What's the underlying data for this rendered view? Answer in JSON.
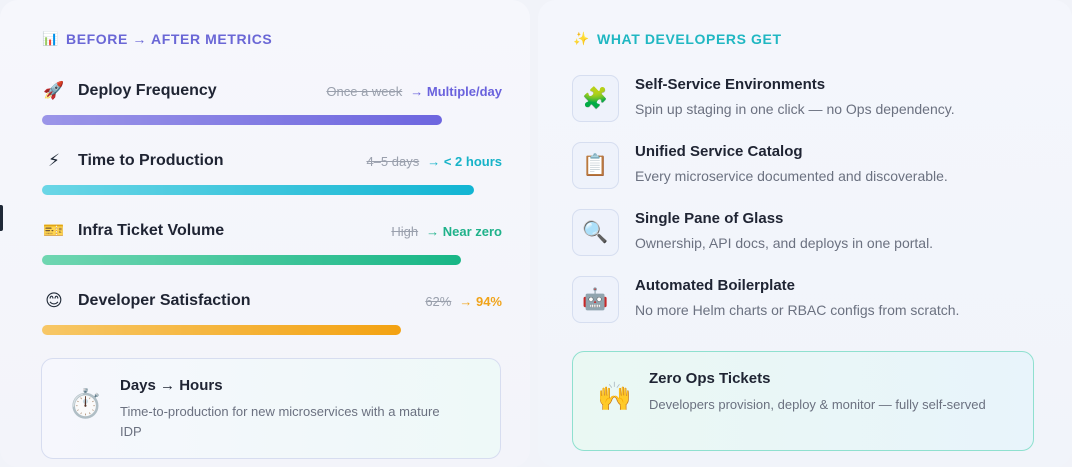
{
  "left": {
    "icon": "bar-chart-icon",
    "icon_glyph": "📊",
    "title": "BEFORE → AFTER METRICS",
    "metrics": [
      {
        "icon": "rocket-icon",
        "icon_glyph": "🚀",
        "label": "Deploy Frequency",
        "before": "Once a week",
        "after": "→ Multiple/day",
        "after_color": "#6a62dd",
        "bar_fraction": 0.87,
        "bar_gradient": [
          "#9b95e8",
          "#6d66df"
        ]
      },
      {
        "icon": "lightning-icon",
        "icon_glyph": "⚡",
        "label": "Time to Production",
        "before": "4–5 days",
        "after": "→ < 2 hours",
        "after_color": "#17b3c8",
        "bar_fraction": 0.94,
        "bar_gradient": [
          "#6ad6e6",
          "#12b5d3"
        ]
      },
      {
        "icon": "ticket-icon",
        "icon_glyph": "🎫",
        "label": "Infra Ticket Volume",
        "before": "High",
        "after": "→ Near zero",
        "after_color": "#1fb28a",
        "bar_fraction": 0.91,
        "bar_gradient": [
          "#6fd6b1",
          "#18b686"
        ]
      },
      {
        "icon": "smile-icon",
        "icon_glyph": "😊",
        "label": "Developer Satisfaction",
        "before": "62%",
        "after": "→ 94%",
        "after_color": "#f0a31a",
        "bar_fraction": 0.78,
        "bar_gradient": [
          "#f7c766",
          "#f3a212"
        ]
      }
    ],
    "callout": {
      "icon": "stopwatch-icon",
      "icon_glyph": "⏱️",
      "title": "Days → Hours",
      "desc": "Time-to-production for new microservices with a mature IDP"
    }
  },
  "right": {
    "icon": "sparkles-icon",
    "icon_glyph": "✨",
    "title": "WHAT DEVELOPERS GET",
    "features": [
      {
        "icon": "puzzle-icon",
        "icon_glyph": "🧩",
        "title": "Self-Service Environments",
        "desc": "Spin up staging in one click — no Ops dependency."
      },
      {
        "icon": "clipboard-icon",
        "icon_glyph": "📋",
        "title": "Unified Service Catalog",
        "desc": "Every microservice documented and discoverable."
      },
      {
        "icon": "magnifier-icon",
        "icon_glyph": "🔍",
        "title": "Single Pane of Glass",
        "desc": "Ownership, API docs, and deploys in one portal."
      },
      {
        "icon": "robot-icon",
        "icon_glyph": "🤖",
        "title": "Automated Boilerplate",
        "desc": "No more Helm charts or RBAC configs from scratch."
      }
    ],
    "callout": {
      "icon": "raised-hands-icon",
      "icon_glyph": "🙌",
      "title": "Zero Ops Tickets",
      "desc": "Developers provision, deploy & monitor — fully self-served"
    }
  }
}
